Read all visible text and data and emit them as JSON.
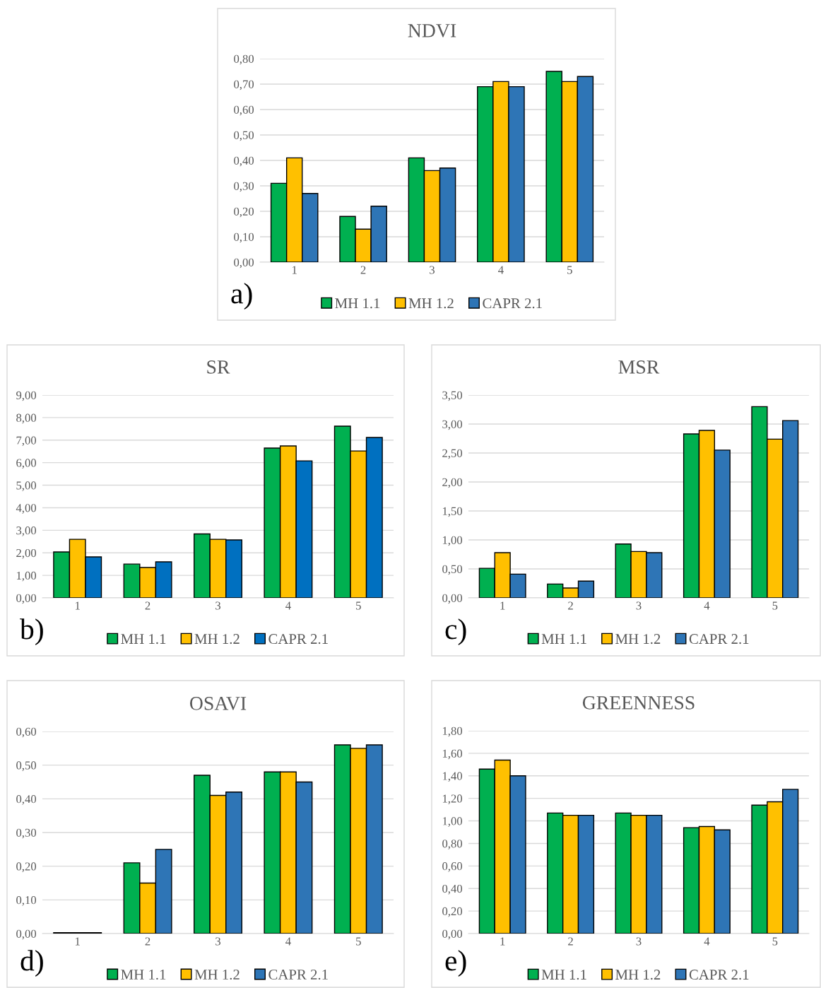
{
  "chart_data": [
    {
      "type": "bar",
      "title": "NDVI",
      "categories": [
        "1",
        "2",
        "3",
        "4",
        "5"
      ],
      "series": [
        {
          "name": "MH 1.1",
          "color": "#00b050",
          "values": [
            0.31,
            0.18,
            0.41,
            0.69,
            0.75
          ]
        },
        {
          "name": "MH 1.2",
          "color": "#ffc000",
          "values": [
            0.41,
            0.13,
            0.36,
            0.71,
            0.71
          ]
        },
        {
          "name": "CAPR 2.1",
          "color": "#2e75b6",
          "values": [
            0.27,
            0.22,
            0.37,
            0.69,
            0.73
          ]
        }
      ],
      "ylim": [
        0,
        0.8
      ],
      "yticks": [
        {
          "value": 0,
          "label": "0,00"
        },
        {
          "value": 0.1,
          "label": "0,10"
        },
        {
          "value": 0.2,
          "label": "0,20"
        },
        {
          "value": 0.3,
          "label": "0,30"
        },
        {
          "value": 0.4,
          "label": "0,40"
        },
        {
          "value": 0.5,
          "label": "0,50"
        },
        {
          "value": 0.6,
          "label": "0,60"
        },
        {
          "value": 0.7,
          "label": "0,70"
        },
        {
          "value": 0.8,
          "label": "0,80"
        }
      ],
      "grid": "y",
      "legend": "bottom",
      "annotations": [
        "a)"
      ]
    },
    {
      "type": "bar",
      "title": "SR",
      "categories": [
        "1",
        "2",
        "3",
        "4",
        "5"
      ],
      "series": [
        {
          "name": "MH 1.1",
          "color": "#00b050",
          "values": [
            2.04,
            1.5,
            2.84,
            6.65,
            7.62
          ]
        },
        {
          "name": "MH 1.2",
          "color": "#ffc000",
          "values": [
            2.6,
            1.35,
            2.6,
            6.74,
            6.52
          ]
        },
        {
          "name": "CAPR 2.1",
          "color": "#0070c0",
          "values": [
            1.82,
            1.6,
            2.57,
            6.08,
            7.12
          ]
        }
      ],
      "ylim": [
        0,
        9
      ],
      "yticks": [
        {
          "value": 0,
          "label": "0,00"
        },
        {
          "value": 1,
          "label": "1,00"
        },
        {
          "value": 2,
          "label": "2,00"
        },
        {
          "value": 3,
          "label": "3,00"
        },
        {
          "value": 4,
          "label": "4,00"
        },
        {
          "value": 5,
          "label": "5,00"
        },
        {
          "value": 6,
          "label": "6,00"
        },
        {
          "value": 7,
          "label": "7,00"
        },
        {
          "value": 8,
          "label": "8,00"
        },
        {
          "value": 9,
          "label": "9,00"
        }
      ],
      "grid": "y",
      "legend": "bottom",
      "annotations": [
        "b)"
      ]
    },
    {
      "type": "bar",
      "title": "MSR",
      "categories": [
        "1",
        "2",
        "3",
        "4",
        "5"
      ],
      "series": [
        {
          "name": "MH 1.1",
          "color": "#00b050",
          "values": [
            0.51,
            0.24,
            0.93,
            2.83,
            3.3
          ]
        },
        {
          "name": "MH 1.2",
          "color": "#ffc000",
          "values": [
            0.78,
            0.17,
            0.8,
            2.89,
            2.74
          ]
        },
        {
          "name": "CAPR 2.1",
          "color": "#2e75b6",
          "values": [
            0.41,
            0.29,
            0.78,
            2.55,
            3.06
          ]
        }
      ],
      "ylim": [
        0,
        3.5
      ],
      "yticks": [
        {
          "value": 0,
          "label": "0,00"
        },
        {
          "value": 0.5,
          "label": "0,50"
        },
        {
          "value": 1,
          "label": "1,00"
        },
        {
          "value": 1.5,
          "label": "1,50"
        },
        {
          "value": 2,
          "label": "2,00"
        },
        {
          "value": 2.5,
          "label": "2,50"
        },
        {
          "value": 3,
          "label": "3,00"
        },
        {
          "value": 3.5,
          "label": "3,50"
        }
      ],
      "grid": "y",
      "legend": "bottom",
      "annotations": [
        "c)"
      ]
    },
    {
      "type": "bar",
      "title": "OSAVI",
      "categories": [
        "1",
        "2",
        "3",
        "4",
        "5"
      ],
      "series": [
        {
          "name": "MH 1.1",
          "color": "#00b050",
          "values": [
            0.003,
            0.21,
            0.47,
            0.48,
            0.56
          ]
        },
        {
          "name": "MH 1.2",
          "color": "#ffc000",
          "values": [
            0.003,
            0.15,
            0.41,
            0.48,
            0.55
          ]
        },
        {
          "name": "CAPR 2.1",
          "color": "#2e75b6",
          "values": [
            0.003,
            0.25,
            0.42,
            0.45,
            0.56
          ]
        }
      ],
      "ylim": [
        0,
        0.6
      ],
      "yticks": [
        {
          "value": 0,
          "label": "0,00"
        },
        {
          "value": 0.1,
          "label": "0,10"
        },
        {
          "value": 0.2,
          "label": "0,20"
        },
        {
          "value": 0.3,
          "label": "0,30"
        },
        {
          "value": 0.4,
          "label": "0,40"
        },
        {
          "value": 0.5,
          "label": "0,50"
        },
        {
          "value": 0.6,
          "label": "0,60"
        }
      ],
      "grid": "y",
      "legend": "bottom",
      "annotations": [
        "d)"
      ]
    },
    {
      "type": "bar",
      "title": "GREENNESS",
      "categories": [
        "1",
        "2",
        "3",
        "4",
        "5"
      ],
      "series": [
        {
          "name": "MH 1.1",
          "color": "#00b050",
          "values": [
            1.46,
            1.07,
            1.07,
            0.94,
            1.14
          ]
        },
        {
          "name": "MH 1.2",
          "color": "#ffc000",
          "values": [
            1.54,
            1.05,
            1.05,
            0.95,
            1.17
          ]
        },
        {
          "name": "CAPR 2.1",
          "color": "#2e75b6",
          "values": [
            1.4,
            1.05,
            1.05,
            0.92,
            1.28
          ]
        }
      ],
      "ylim": [
        0,
        1.8
      ],
      "yticks": [
        {
          "value": 0,
          "label": "0,00"
        },
        {
          "value": 0.2,
          "label": "0,20"
        },
        {
          "value": 0.4,
          "label": "0,40"
        },
        {
          "value": 0.6,
          "label": "0,60"
        },
        {
          "value": 0.8,
          "label": "0,80"
        },
        {
          "value": 1,
          "label": "1,00"
        },
        {
          "value": 1.2,
          "label": "1,20"
        },
        {
          "value": 1.4,
          "label": "1,40"
        },
        {
          "value": 1.6,
          "label": "1,60"
        },
        {
          "value": 1.8,
          "label": "1,80"
        }
      ],
      "grid": "y",
      "legend": "bottom",
      "annotations": [
        "e)"
      ]
    }
  ]
}
